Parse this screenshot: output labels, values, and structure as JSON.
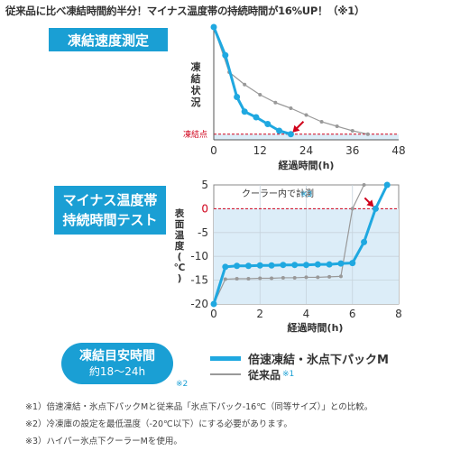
{
  "headline": "従来品に比べ凍結時間約半分！マイナス温度帯の持続時間が16%UP！（※1）",
  "badges": {
    "freeze": "凍結速度測定",
    "minus_line1": "マイナス温度帯",
    "minus_line2": "持続時間テスト"
  },
  "pill": {
    "title": "凍結目安時間",
    "range": "約18〜24h",
    "note": "※2"
  },
  "legend": {
    "product": "倍速凍結・氷点下パックM",
    "conventional": "従来品",
    "conventional_note": "※1"
  },
  "footnotes": [
    "※1）倍速凍結・氷点下パックMと従来品「氷点下パック-16℃（同等サイズ）」との比較。",
    "※2）冷凍庫の設定を最低温度（-20℃以下）にする必要があります。",
    "※3）ハイパー氷点下クーラーMを使用。"
  ],
  "colors": {
    "accent": "#1a9fd4",
    "product_line": "#1fa8e0",
    "conventional_line": "#999999",
    "marker_line": "#d0021b",
    "shade": "#dcedf8"
  },
  "chart_data": [
    {
      "type": "line",
      "xlabel": "経過時間(h)",
      "ylabel_chars": [
        "凍",
        "結",
        "状",
        "況"
      ],
      "threshold_label": "凍結点",
      "x_ticks": [
        0,
        12,
        24,
        36,
        48
      ],
      "xlim": [
        0,
        48
      ],
      "ylim": [
        0,
        1
      ],
      "series": [
        {
          "name": "倍速凍結・氷点下パックM",
          "color": "#1fa8e0",
          "x": [
            0,
            3,
            6,
            8,
            11,
            14,
            17,
            20
          ],
          "y": [
            1.0,
            0.75,
            0.38,
            0.25,
            0.2,
            0.14,
            0.08,
            0.05
          ]
        },
        {
          "name": "従来品",
          "color": "#999999",
          "x": [
            0,
            4,
            8,
            12,
            16,
            20,
            24,
            28,
            32,
            36,
            40
          ],
          "y": [
            1.0,
            0.6,
            0.49,
            0.4,
            0.33,
            0.28,
            0.22,
            0.16,
            0.12,
            0.08,
            0.05
          ]
        }
      ],
      "freeze_point_y": 0.05
    },
    {
      "type": "line",
      "xlabel": "経過時間(h)",
      "ylabel": "表面温度(℃)",
      "annotation": "クーラー内で計測",
      "annotation_note": "※3",
      "x_ticks": [
        0,
        2,
        4,
        6,
        8
      ],
      "y_ticks": [
        5,
        0,
        -5,
        -10,
        -15,
        -20
      ],
      "xlim": [
        0,
        8
      ],
      "ylim": [
        -20,
        5
      ],
      "zero_line": 0,
      "series": [
        {
          "name": "倍速凍結・氷点下パックM",
          "color": "#1fa8e0",
          "x": [
            0,
            0.5,
            1.0,
            1.5,
            2.0,
            2.5,
            3.0,
            3.5,
            4.0,
            4.5,
            5.0,
            5.5,
            6.0,
            6.5,
            7.0,
            7.5
          ],
          "y": [
            -20,
            -12.2,
            -12,
            -12,
            -11.9,
            -11.9,
            -11.8,
            -11.8,
            -11.8,
            -11.7,
            -11.7,
            -11.5,
            -11.4,
            -7,
            0,
            5
          ]
        },
        {
          "name": "従来品",
          "color": "#999999",
          "x": [
            0,
            0.5,
            1.0,
            1.5,
            2.0,
            2.5,
            3.0,
            3.5,
            4.0,
            4.5,
            5.0,
            5.5,
            6.0,
            6.5
          ],
          "y": [
            -20,
            -14.8,
            -14.7,
            -14.7,
            -14.6,
            -14.6,
            -14.5,
            -14.5,
            -14.4,
            -14.4,
            -14.3,
            -14.2,
            0,
            5
          ]
        }
      ]
    }
  ]
}
